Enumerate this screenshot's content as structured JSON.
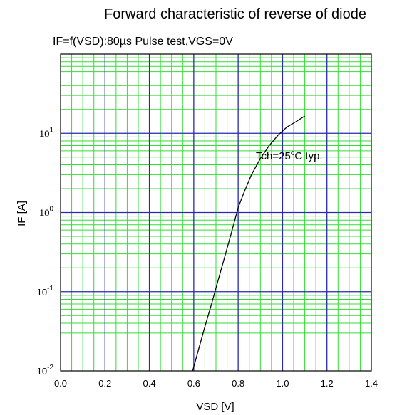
{
  "chart_data": {
    "type": "line",
    "title": "Forward characteristic of reverse of diode",
    "subtitle": "IF=f(VSD):80µs Pulse test,VGS=0V",
    "xlabel": "VSD [V]",
    "ylabel": "IF [A]",
    "xlim": [
      0.0,
      1.4
    ],
    "ylim": [
      0.01,
      100
    ],
    "y_scale": "log",
    "grid": true,
    "x_ticks": [
      "0.0",
      "0.2",
      "0.4",
      "0.6",
      "0.8",
      "1.0",
      "1.2",
      "1.4"
    ],
    "y_ticks": [
      {
        "base": "10",
        "exp": "-2",
        "value": 0.01
      },
      {
        "base": "10",
        "exp": "-1",
        "value": 0.1
      },
      {
        "base": "10",
        "exp": "0",
        "value": 1
      },
      {
        "base": "10",
        "exp": "1",
        "value": 10
      }
    ],
    "series": [
      {
        "name": "",
        "x": [
          0.595,
          0.62,
          0.65,
          0.68,
          0.71,
          0.74,
          0.77,
          0.8,
          0.83,
          0.86,
          0.9,
          0.94,
          0.98,
          1.02,
          1.06,
          1.1
        ],
        "y": [
          0.01,
          0.018,
          0.036,
          0.07,
          0.14,
          0.28,
          0.56,
          1.15,
          1.9,
          3.0,
          4.8,
          7.0,
          9.5,
          12.0,
          14.0,
          16.5
        ]
      }
    ],
    "annotations": [
      {
        "text_main": "Tch=25",
        "text_sup": "o",
        "text_rest": "C typ.",
        "x": 0.88,
        "y": 4.5
      }
    ]
  }
}
